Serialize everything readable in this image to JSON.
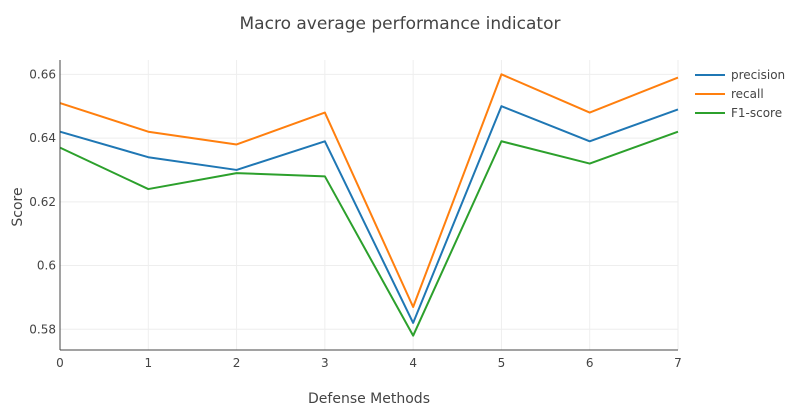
{
  "chart_data": {
    "type": "line",
    "title": "Macro average performance indicator",
    "xlabel": "Defense Methods",
    "ylabel": "Score",
    "x": [
      0,
      1,
      2,
      3,
      4,
      5,
      6,
      7
    ],
    "x_ticks": [
      "0",
      "1",
      "2",
      "3",
      "4",
      "5",
      "6",
      "7"
    ],
    "y_ticks": [
      0.58,
      0.6,
      0.62,
      0.64,
      0.66
    ],
    "y_tick_labels": [
      "0.58",
      "0.6",
      "0.62",
      "0.64",
      "0.66"
    ],
    "xlim": [
      0,
      7
    ],
    "ylim": [
      0.5735,
      0.6645
    ],
    "grid": true,
    "legend_position": "top-right",
    "series": [
      {
        "name": "precision",
        "color": "#1f77b4",
        "values": [
          0.642,
          0.634,
          0.63,
          0.639,
          0.582,
          0.65,
          0.639,
          0.649
        ]
      },
      {
        "name": "recall",
        "color": "#ff7f0e",
        "values": [
          0.651,
          0.642,
          0.638,
          0.648,
          0.587,
          0.66,
          0.648,
          0.659
        ]
      },
      {
        "name": "F1-score",
        "color": "#2ca02c",
        "values": [
          0.637,
          0.624,
          0.629,
          0.628,
          0.578,
          0.639,
          0.632,
          0.642
        ]
      }
    ]
  }
}
